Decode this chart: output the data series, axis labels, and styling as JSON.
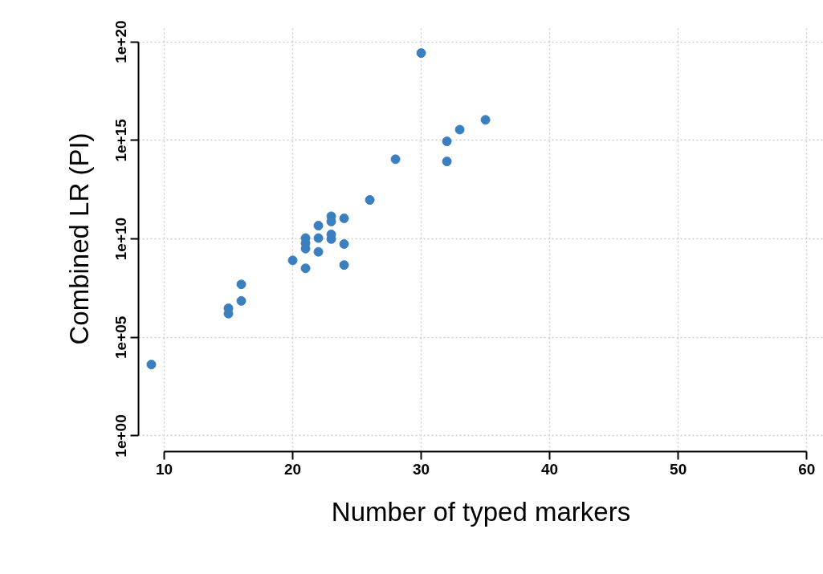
{
  "chart_data": {
    "type": "scatter",
    "xlabel": "Number of typed markers",
    "ylabel": "Combined LR (PI)",
    "x": [
      9,
      16,
      16,
      15,
      15,
      20,
      21,
      21,
      21,
      21,
      22,
      22,
      22,
      23,
      23,
      23,
      23,
      24,
      24,
      24,
      26,
      30,
      28,
      32,
      32,
      33,
      35
    ],
    "series": [
      {
        "color": "#3a7fbf",
        "values": [
          4200.0,
          49000000.0,
          7100000.0,
          3000000.0,
          1600000.0,
          810000000.0,
          320000000.0,
          11000000000.0,
          6000000000.0,
          3200000000.0,
          47000000000.0,
          11000000000.0,
          2200000000.0,
          140000000000.0,
          76000000000.0,
          17000000000.0,
          9800000000.0,
          110000000000.0,
          5500000000.0,
          470000000.0,
          950000000000.0,
          2.7e+19,
          110000000000000.0,
          890000000000000.0,
          85000000000000.0,
          3500000000000000.0,
          1.1e+16
        ]
      }
    ],
    "xlim": [
      8,
      61.3
    ],
    "ylim": [
      0.16,
      6.3e+20
    ],
    "xticks": [
      10,
      20,
      30,
      40,
      50,
      60
    ],
    "yticks": [
      {
        "value": 1,
        "label": "1e+00"
      },
      {
        "value": 100000.0,
        "label": "1e+05"
      },
      {
        "value": 10000000000.0,
        "label": "1e+10"
      },
      {
        "value": 1000000000000000.0,
        "label": "1e+15"
      },
      {
        "value": 1e+20,
        "label": "1e+20"
      }
    ],
    "log": "y",
    "grid": true,
    "marker": "circle"
  }
}
